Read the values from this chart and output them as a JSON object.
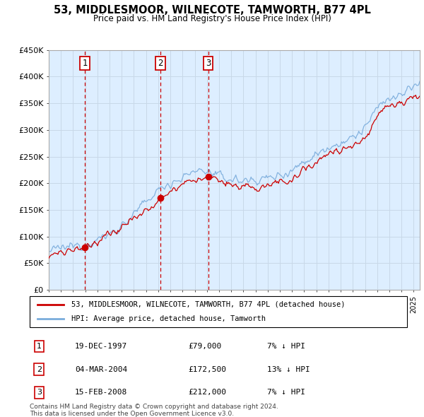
{
  "title": "53, MIDDLESMOOR, WILNECOTE, TAMWORTH, B77 4PL",
  "subtitle": "Price paid vs. HM Land Registry's House Price Index (HPI)",
  "ylabel_ticks": [
    "£0",
    "£50K",
    "£100K",
    "£150K",
    "£200K",
    "£250K",
    "£300K",
    "£350K",
    "£400K",
    "£450K"
  ],
  "ytick_values": [
    0,
    50000,
    100000,
    150000,
    200000,
    250000,
    300000,
    350000,
    400000,
    450000
  ],
  "ylim": [
    0,
    450000
  ],
  "xlim_start": 1995.0,
  "xlim_end": 2025.5,
  "sale_events": [
    {
      "num": 1,
      "year": 1997.97,
      "price": 79000,
      "date": "19-DEC-1997",
      "price_str": "£79,000",
      "pct": "7%",
      "dir": "↓"
    },
    {
      "num": 2,
      "year": 2004.17,
      "price": 172500,
      "date": "04-MAR-2004",
      "price_str": "£172,500",
      "pct": "13%",
      "dir": "↓"
    },
    {
      "num": 3,
      "year": 2008.12,
      "price": 212000,
      "date": "15-FEB-2008",
      "price_str": "£212,000",
      "pct": "7%",
      "dir": "↓"
    }
  ],
  "legend_line1": "53, MIDDLESMOOR, WILNECOTE, TAMWORTH, B77 4PL (detached house)",
  "legend_line2": "HPI: Average price, detached house, Tamworth",
  "footer1": "Contains HM Land Registry data © Crown copyright and database right 2024.",
  "footer2": "This data is licensed under the Open Government Licence v3.0.",
  "line_color_red": "#cc0000",
  "line_color_blue": "#7aacdc",
  "background_color": "#ffffff",
  "grid_color": "#c8d8e8",
  "plot_bg_color": "#ddeeff"
}
